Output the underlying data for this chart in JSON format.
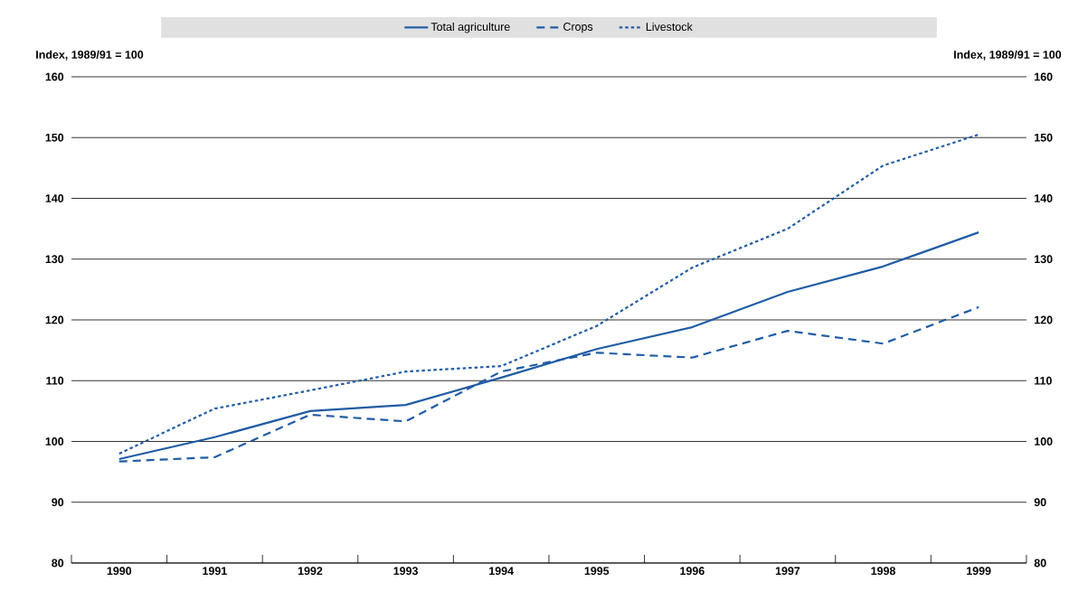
{
  "chart_data": {
    "type": "line",
    "ylabel": "Index, 1989/91 = 100",
    "y2label": "Index, 1989/91 = 100",
    "categories": [
      "1990",
      "1991",
      "1992",
      "1993",
      "1994",
      "1995",
      "1996",
      "1997",
      "1998",
      "1999"
    ],
    "series": [
      {
        "name": "Total agriculture",
        "color": "#1f5ca4",
        "line_style": "solid",
        "values": [
          97.1,
          100.7,
          105.0,
          106.0,
          110.5,
          115.2,
          118.8,
          124.6,
          128.8,
          134.4
        ]
      },
      {
        "name": "Crops",
        "color": "#1f5ca4",
        "line_style": "dashed",
        "values": [
          96.7,
          97.4,
          104.4,
          103.3,
          111.5,
          114.6,
          113.8,
          118.2,
          116.1,
          122.1
        ]
      },
      {
        "name": "Livestock",
        "color": "#1f5ca4",
        "line_style": "dotted",
        "values": [
          98.0,
          105.4,
          108.4,
          111.5,
          112.4,
          119.0,
          128.6,
          135.0,
          145.4,
          150.5
        ]
      }
    ],
    "ylim": [
      80,
      160
    ],
    "yticks": [
      80,
      90,
      100,
      110,
      120,
      130,
      140,
      150,
      160
    ],
    "y2lim": [
      80,
      160
    ],
    "y2ticks": [
      80,
      90,
      100,
      110,
      120,
      130,
      140,
      150,
      160
    ],
    "grid": "y",
    "legend": "top",
    "marker": "none"
  }
}
